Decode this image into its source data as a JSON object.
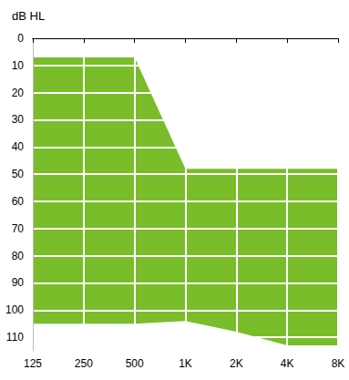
{
  "chart_data": {
    "type": "area_range",
    "title": "dB HL",
    "categories": [
      "125",
      "250",
      "500",
      "1K",
      "2K",
      "4K",
      "8K"
    ],
    "upper": [
      7,
      7,
      7,
      48,
      48,
      48,
      48
    ],
    "lower": [
      105,
      105,
      105,
      104,
      108,
      113,
      113
    ],
    "color": "#79bd2a",
    "ylim": [
      0,
      115
    ],
    "yticks": [
      0,
      10,
      20,
      30,
      40,
      50,
      60,
      70,
      80,
      90,
      100,
      110
    ],
    "grid": true
  }
}
